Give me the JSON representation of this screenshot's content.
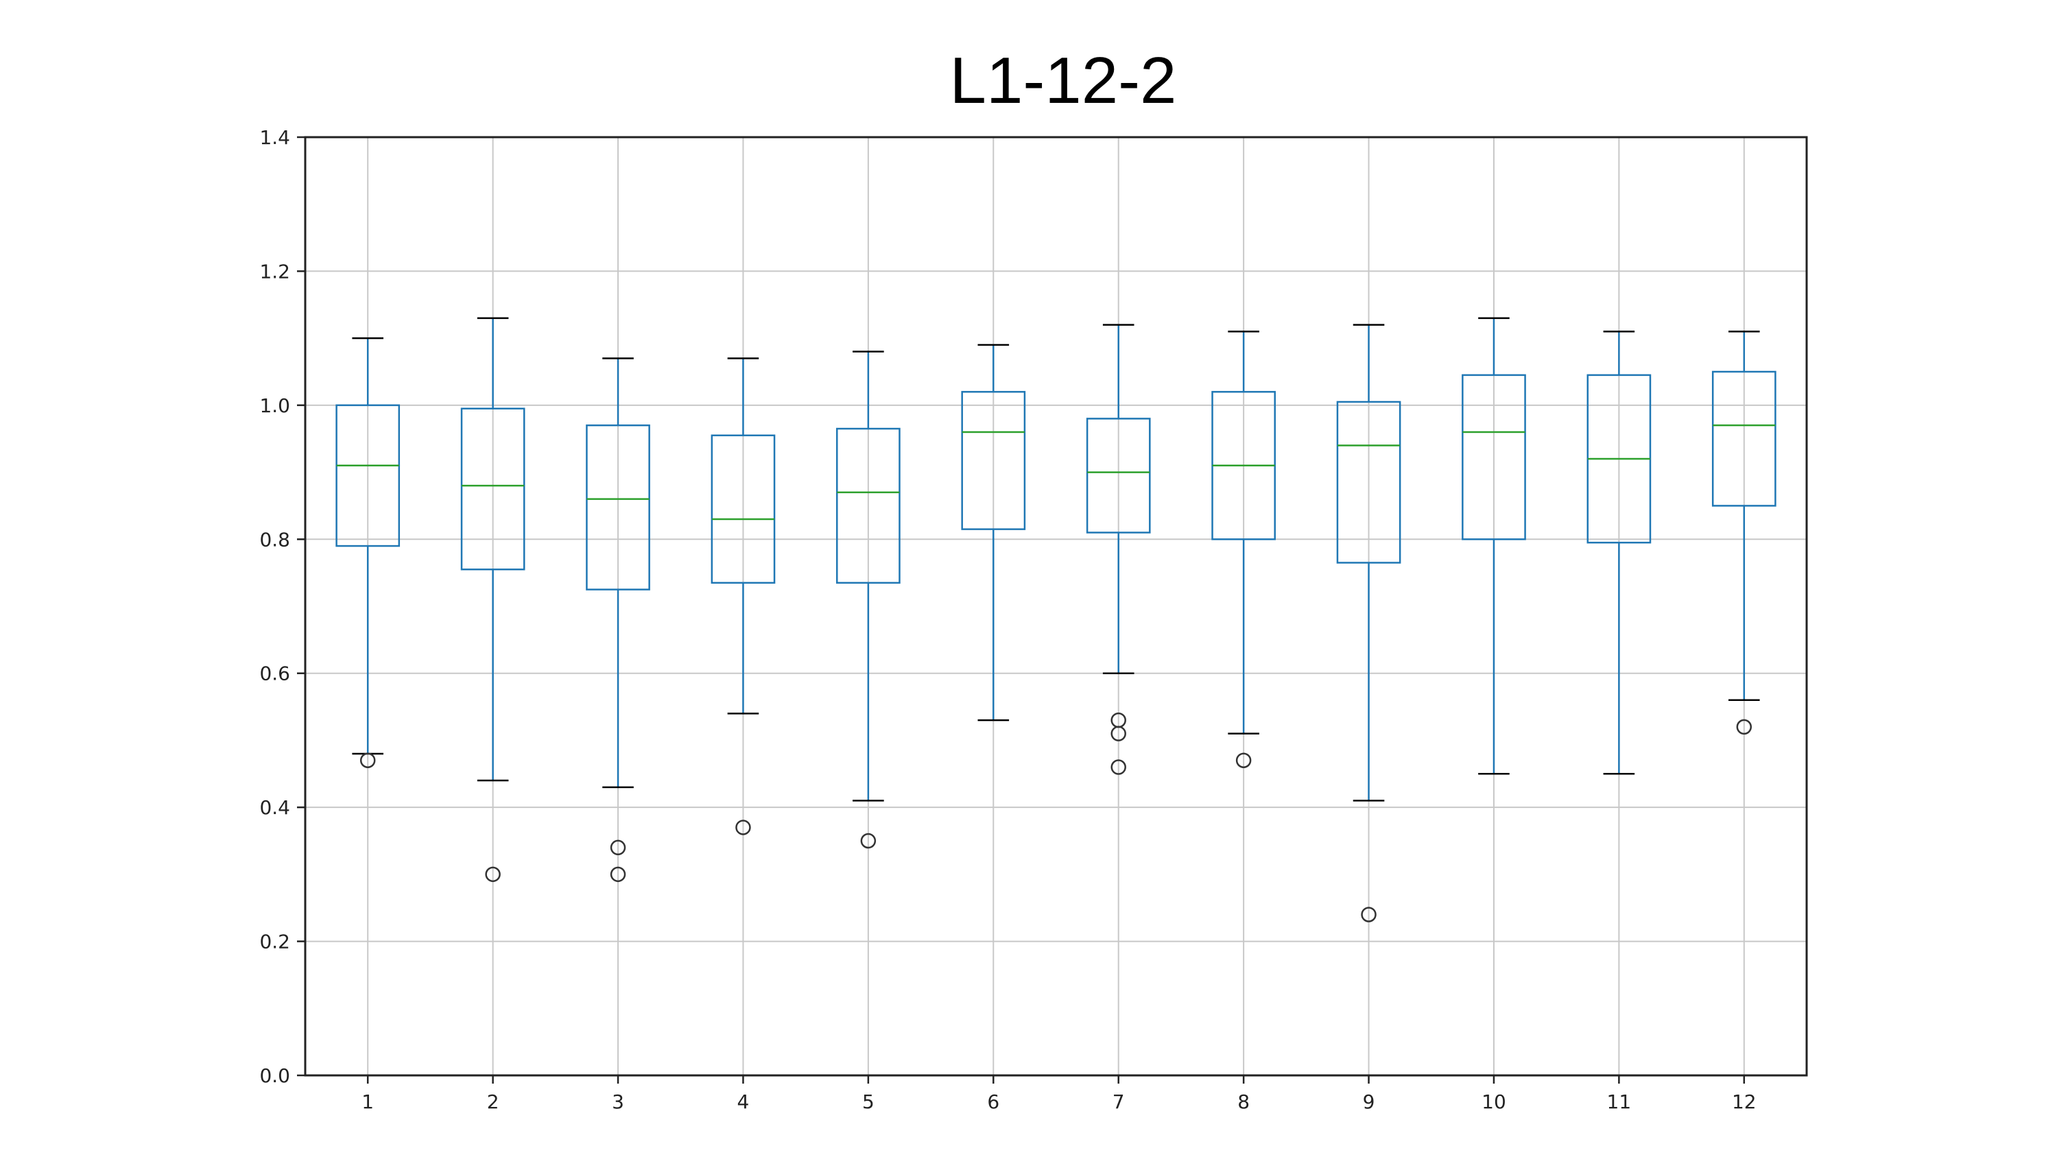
{
  "chart_data": {
    "type": "boxplot",
    "title": "L1-12-2",
    "xlabel": "",
    "ylabel": "",
    "categories": [
      "1",
      "2",
      "3",
      "4",
      "5",
      "6",
      "7",
      "8",
      "9",
      "10",
      "11",
      "12"
    ],
    "ylim": [
      0.0,
      1.4
    ],
    "yticks": [
      "0.0",
      "0.2",
      "0.4",
      "0.6",
      "0.8",
      "1.0",
      "1.2",
      "1.4"
    ],
    "grid": true,
    "colors": {
      "box": "#1f77b4",
      "median": "#2ca02c",
      "cap": "#000000",
      "flier": "#333333",
      "grid": "#c8c8c8",
      "axis": "#222222"
    },
    "boxes": [
      {
        "category": "1",
        "whisker_low": 0.48,
        "q1": 0.79,
        "median": 0.91,
        "q3": 1.0,
        "whisker_high": 1.1,
        "outliers": [
          0.47
        ]
      },
      {
        "category": "2",
        "whisker_low": 0.44,
        "q1": 0.755,
        "median": 0.88,
        "q3": 0.995,
        "whisker_high": 1.13,
        "outliers": [
          0.3
        ]
      },
      {
        "category": "3",
        "whisker_low": 0.43,
        "q1": 0.725,
        "median": 0.86,
        "q3": 0.97,
        "whisker_high": 1.07,
        "outliers": [
          0.34,
          0.3
        ]
      },
      {
        "category": "4",
        "whisker_low": 0.54,
        "q1": 0.735,
        "median": 0.83,
        "q3": 0.955,
        "whisker_high": 1.07,
        "outliers": [
          0.37
        ]
      },
      {
        "category": "5",
        "whisker_low": 0.41,
        "q1": 0.735,
        "median": 0.87,
        "q3": 0.965,
        "whisker_high": 1.08,
        "outliers": [
          0.35
        ]
      },
      {
        "category": "6",
        "whisker_low": 0.53,
        "q1": 0.815,
        "median": 0.96,
        "q3": 1.02,
        "whisker_high": 1.09,
        "outliers": []
      },
      {
        "category": "7",
        "whisker_low": 0.6,
        "q1": 0.81,
        "median": 0.9,
        "q3": 0.98,
        "whisker_high": 1.12,
        "outliers": [
          0.53,
          0.51,
          0.46
        ]
      },
      {
        "category": "8",
        "whisker_low": 0.51,
        "q1": 0.8,
        "median": 0.91,
        "q3": 1.02,
        "whisker_high": 1.11,
        "outliers": [
          0.47
        ]
      },
      {
        "category": "9",
        "whisker_low": 0.41,
        "q1": 0.765,
        "median": 0.94,
        "q3": 1.005,
        "whisker_high": 1.12,
        "outliers": [
          0.24
        ]
      },
      {
        "category": "10",
        "whisker_low": 0.45,
        "q1": 0.8,
        "median": 0.96,
        "q3": 1.045,
        "whisker_high": 1.13,
        "outliers": []
      },
      {
        "category": "11",
        "whisker_low": 0.45,
        "q1": 0.795,
        "median": 0.92,
        "q3": 1.045,
        "whisker_high": 1.11,
        "outliers": []
      },
      {
        "category": "12",
        "whisker_low": 0.56,
        "q1": 0.85,
        "median": 0.97,
        "q3": 1.05,
        "whisker_high": 1.11,
        "outliers": [
          0.52
        ]
      }
    ]
  }
}
